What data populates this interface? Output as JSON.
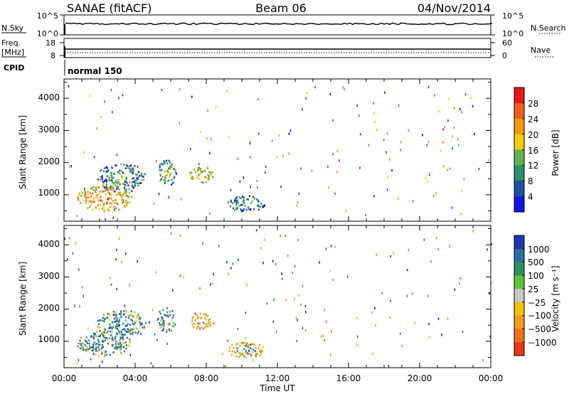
{
  "header": {
    "station": "SANAE (fitACF)",
    "beam": "Beam 06",
    "date": "04/Nov/2014"
  },
  "top_panels": {
    "nsky_label": "N.Sky",
    "nsky_ticks": [
      "10^5",
      "10^0"
    ],
    "nsearch_label": "N.Search",
    "nsearch_ticks": [
      "10^5",
      "10^0"
    ],
    "freq_label_1": "Freq.",
    "freq_label_2": "[MHz]",
    "freq_ticks": [
      "18",
      "8"
    ],
    "nave_label": "Nave",
    "nave_ticks": [
      "60",
      "0"
    ],
    "cpid_label": "CPID",
    "cpid_value": "normal 150"
  },
  "colorbars": {
    "power": {
      "label": "Power [dB]",
      "ticks": [
        "28",
        "24",
        "20",
        "16",
        "12",
        "8",
        "4"
      ],
      "colors": [
        "#e81818",
        "#f06020",
        "#f09a10",
        "#f5cc10",
        "#66b052",
        "#2e8f6a",
        "#1f4fa0",
        "#1414e0"
      ]
    },
    "velocity": {
      "label": "Velocity [m s⁻¹]",
      "ticks": [
        "1000",
        "500",
        "100",
        "25",
        "−25",
        "−100",
        "−500",
        "−1000"
      ],
      "colors": [
        "#1a36b0",
        "#2d6ea0",
        "#2e8f5a",
        "#5fc040",
        "#c8c8c8",
        "#f5c010",
        "#f09a20",
        "#f07020",
        "#e83818"
      ]
    }
  },
  "chart_data": [
    {
      "type": "heatmap",
      "title": "",
      "quantity": "Power",
      "xlabel": "",
      "ylabel": "Slant Range [km]",
      "xlim": [
        0,
        24
      ],
      "ylim": [
        180,
        4600
      ],
      "yticks": [
        "1000",
        "2000",
        "3000",
        "4000"
      ],
      "clim": [
        0,
        32
      ],
      "echo_regions": [
        {
          "t_start": 0.7,
          "t_end": 3.8,
          "r_min": 500,
          "r_max": 1350,
          "level": 18
        },
        {
          "t_start": 1.8,
          "t_end": 4.6,
          "r_min": 1100,
          "r_max": 2000,
          "level": 6
        },
        {
          "t_start": 5.2,
          "t_end": 6.3,
          "r_min": 1300,
          "r_max": 2100,
          "level": 9
        },
        {
          "t_start": 7.0,
          "t_end": 8.4,
          "r_min": 1400,
          "r_max": 1900,
          "level": 14
        },
        {
          "t_start": 9.1,
          "t_end": 11.3,
          "r_min": 500,
          "r_max": 1000,
          "level": 5
        }
      ]
    },
    {
      "type": "heatmap",
      "title": "",
      "quantity": "Velocity",
      "xlabel": "Time UT",
      "ylabel": "Slant Range [km]",
      "xlim": [
        0,
        24
      ],
      "xticks": [
        "00:00",
        "04:00",
        "08:00",
        "12:00",
        "16:00",
        "20:00",
        "00:00"
      ],
      "ylim": [
        180,
        4600
      ],
      "yticks": [
        "1000",
        "2000",
        "3000",
        "4000"
      ],
      "clim": [
        -1000,
        1000
      ],
      "echo_regions": [
        {
          "t_start": 0.7,
          "t_end": 3.8,
          "r_min": 550,
          "r_max": 1350,
          "level": 40
        },
        {
          "t_start": 1.8,
          "t_end": 4.6,
          "r_min": 1100,
          "r_max": 2000,
          "level": 60
        },
        {
          "t_start": 5.2,
          "t_end": 6.3,
          "r_min": 1300,
          "r_max": 2100,
          "level": 30
        },
        {
          "t_start": 7.0,
          "t_end": 8.4,
          "r_min": 1400,
          "r_max": 1900,
          "level": -300
        },
        {
          "t_start": 9.1,
          "t_end": 11.3,
          "r_min": 500,
          "r_max": 1000,
          "level": -200
        }
      ]
    }
  ]
}
